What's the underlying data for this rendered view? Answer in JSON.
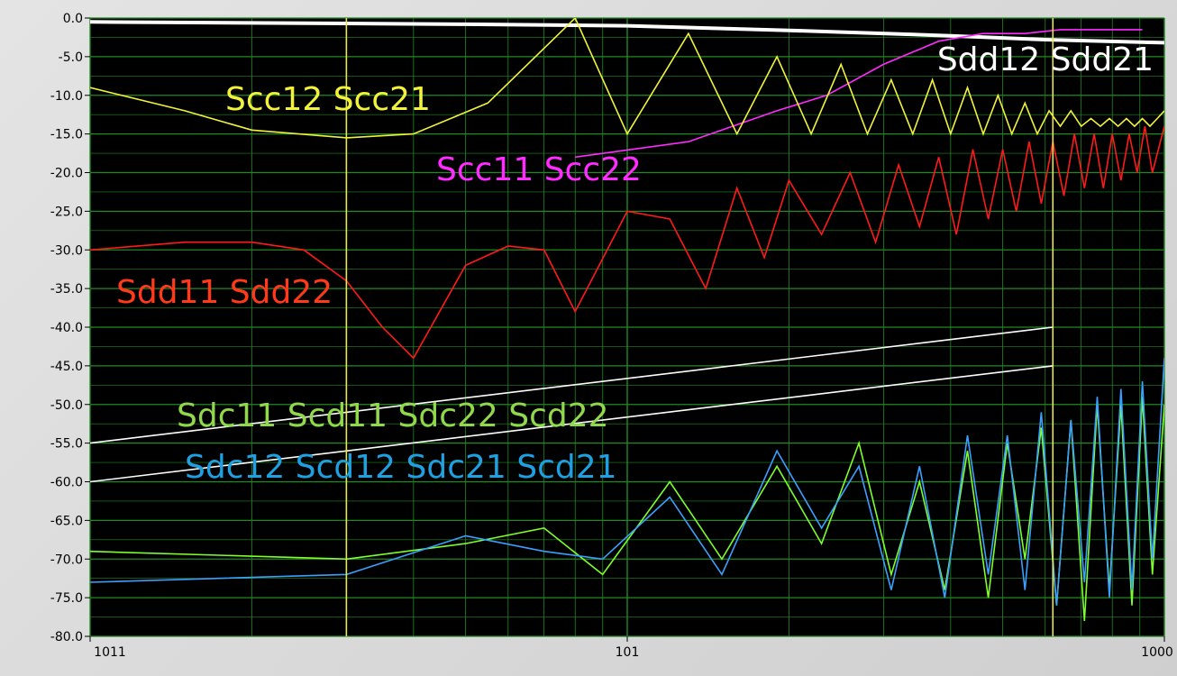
{
  "chart_data": {
    "type": "line",
    "title": "",
    "xlabel": "",
    "ylabel": "",
    "x_scale": "log",
    "ylim": [
      -80,
      0
    ],
    "y_ticks": [
      "0.0",
      "-5.0",
      "-10.0",
      "-15.0",
      "-20.0",
      "-25.0",
      "-30.0",
      "-35.0",
      "-40.0",
      "-45.0",
      "-50.0",
      "-55.0",
      "-60.0",
      "-65.0",
      "-70.0",
      "-75.0",
      "-80.0"
    ],
    "x_tick_labels": [
      "1011",
      "101",
      "1000"
    ],
    "grid": true,
    "background": "#000000",
    "grid_color": "#1f8a1f",
    "cursor_color": "#e8e84a",
    "cursors_x": [
      0.3,
      6.2
    ],
    "colors": {
      "sdd12_sdd21": "#ffffff",
      "scc11_scc22": "#ff2bff",
      "scc12_scc21": "#f2f23a",
      "sdd11_sdd22": "#ff1a1a",
      "sdc11_scd11_sdc22_scd22": "#7dff2b",
      "sdc12_scd12_sdc21_scd21": "#3aa0ff",
      "limit": "#ffffff"
    },
    "series": [
      {
        "name": "Sdd12 Sdd21",
        "x": [
          0.1,
          0.5,
          1,
          2,
          4,
          6,
          10
        ],
        "values": [
          -0.5,
          -0.8,
          -1.0,
          -1.6,
          -2.3,
          -2.8,
          -3.2
        ]
      },
      {
        "name": "Scc11 Scc22",
        "x": [
          0.8,
          1.3,
          1.9,
          2.35,
          3.0,
          3.8,
          4.6,
          5.5,
          6.4,
          7.3,
          8.2,
          9.1
        ],
        "values": [
          -18,
          -16,
          -12,
          -10,
          -6,
          -3,
          -2,
          -2,
          -1.5,
          -1.5,
          -1.5,
          -1.5
        ]
      },
      {
        "name": "Scc12 Scc21",
        "x": [
          0.1,
          0.15,
          0.2,
          0.3,
          0.4,
          0.55,
          0.8,
          1.0,
          1.3,
          1.6,
          1.9,
          2.2,
          2.5,
          2.8,
          3.1,
          3.4,
          3.7,
          4.0,
          4.3,
          4.6,
          4.9,
          5.2,
          5.5,
          5.8,
          6.1,
          6.4,
          6.7,
          7.0,
          7.3,
          7.6,
          7.9,
          8.2,
          8.5,
          8.8,
          9.1,
          9.4,
          9.7,
          10
        ],
        "values": [
          -9,
          -12,
          -14.5,
          -15.5,
          -15,
          -11,
          0,
          -15,
          -2,
          -15,
          -5,
          -15,
          -6,
          -15,
          -8,
          -15,
          -8,
          -15,
          -9,
          -15,
          -10,
          -15,
          -11,
          -15,
          -12,
          -14,
          -12,
          -14,
          -13,
          -14,
          -13,
          -14,
          -13,
          -14,
          -13,
          -14,
          -13,
          -12
        ]
      },
      {
        "name": "Sdd11 Sdd22",
        "x": [
          0.1,
          0.15,
          0.2,
          0.25,
          0.3,
          0.35,
          0.4,
          0.5,
          0.6,
          0.7,
          0.8,
          1.0,
          1.2,
          1.4,
          1.6,
          1.8,
          2.0,
          2.3,
          2.6,
          2.9,
          3.2,
          3.5,
          3.8,
          4.1,
          4.4,
          4.7,
          5.0,
          5.3,
          5.6,
          5.9,
          6.2,
          6.5,
          6.8,
          7.1,
          7.4,
          7.7,
          8.0,
          8.3,
          8.6,
          8.9,
          9.2,
          9.5,
          10
        ],
        "values": [
          -30,
          -29,
          -29,
          -30,
          -34,
          -40,
          -44,
          -32,
          -29.5,
          -30,
          -38,
          -25,
          -26,
          -35,
          -22,
          -31,
          -21,
          -28,
          -20,
          -29,
          -19,
          -27,
          -18,
          -28,
          -17,
          -26,
          -17,
          -25,
          -16,
          -24,
          -16,
          -23,
          -15,
          -22,
          -15,
          -22,
          -15,
          -21,
          -15,
          -20,
          -14,
          -20,
          -14
        ]
      },
      {
        "name": "Sdc11 Scd11 Sdc22 Scd22",
        "x": [
          0.1,
          0.3,
          0.5,
          0.7,
          0.9,
          1.2,
          1.5,
          1.9,
          2.3,
          2.7,
          3.1,
          3.5,
          3.9,
          4.3,
          4.7,
          5.1,
          5.5,
          5.9,
          6.3,
          6.7,
          7.1,
          7.5,
          7.9,
          8.3,
          8.7,
          9.1,
          9.5,
          10
        ],
        "values": [
          -69,
          -70,
          -68,
          -66,
          -72,
          -60,
          -70,
          -58,
          -68,
          -55,
          -72,
          -60,
          -74,
          -56,
          -75,
          -55,
          -70,
          -53,
          -76,
          -52,
          -78,
          -50,
          -74,
          -50,
          -76,
          -49,
          -72,
          -50
        ]
      },
      {
        "name": "Sdc12 Scd12 Sdc21 Scd21",
        "x": [
          0.1,
          0.3,
          0.5,
          0.7,
          0.9,
          1.2,
          1.5,
          1.9,
          2.3,
          2.7,
          3.1,
          3.5,
          3.9,
          4.3,
          4.7,
          5.1,
          5.5,
          5.9,
          6.3,
          6.7,
          7.1,
          7.5,
          7.9,
          8.3,
          8.7,
          9.1,
          9.5,
          10
        ],
        "values": [
          -73,
          -72,
          -67,
          -69,
          -70,
          -62,
          -72,
          -56,
          -66,
          -58,
          -74,
          -58,
          -75,
          -54,
          -72,
          -54,
          -74,
          -51,
          -76,
          -52,
          -73,
          -49,
          -75,
          -48,
          -74,
          -47,
          -70,
          -44
        ]
      },
      {
        "name": "limit-upper",
        "x": [
          0.1,
          6.2
        ],
        "values": [
          -55,
          -40
        ]
      },
      {
        "name": "limit-lower",
        "x": [
          0.1,
          6.2
        ],
        "values": [
          -60,
          -45
        ]
      }
    ]
  },
  "annotations": [
    {
      "text": "Sdd12 Sdd21",
      "color": "#ffffff"
    },
    {
      "text": "Scc12 Scc21",
      "color": "#f2f23a"
    },
    {
      "text": "Scc11 Scc22",
      "color": "#ff2bff"
    },
    {
      "text": "Sdd11 Sdd22",
      "color": "#ff3a1a"
    },
    {
      "text": "Sdc11 Scd11 Sdc22 Scd22",
      "color": "#8fd94a"
    },
    {
      "text": "Sdc12 Scd12 Sdc21 Scd21",
      "color": "#1fa0e0"
    }
  ]
}
